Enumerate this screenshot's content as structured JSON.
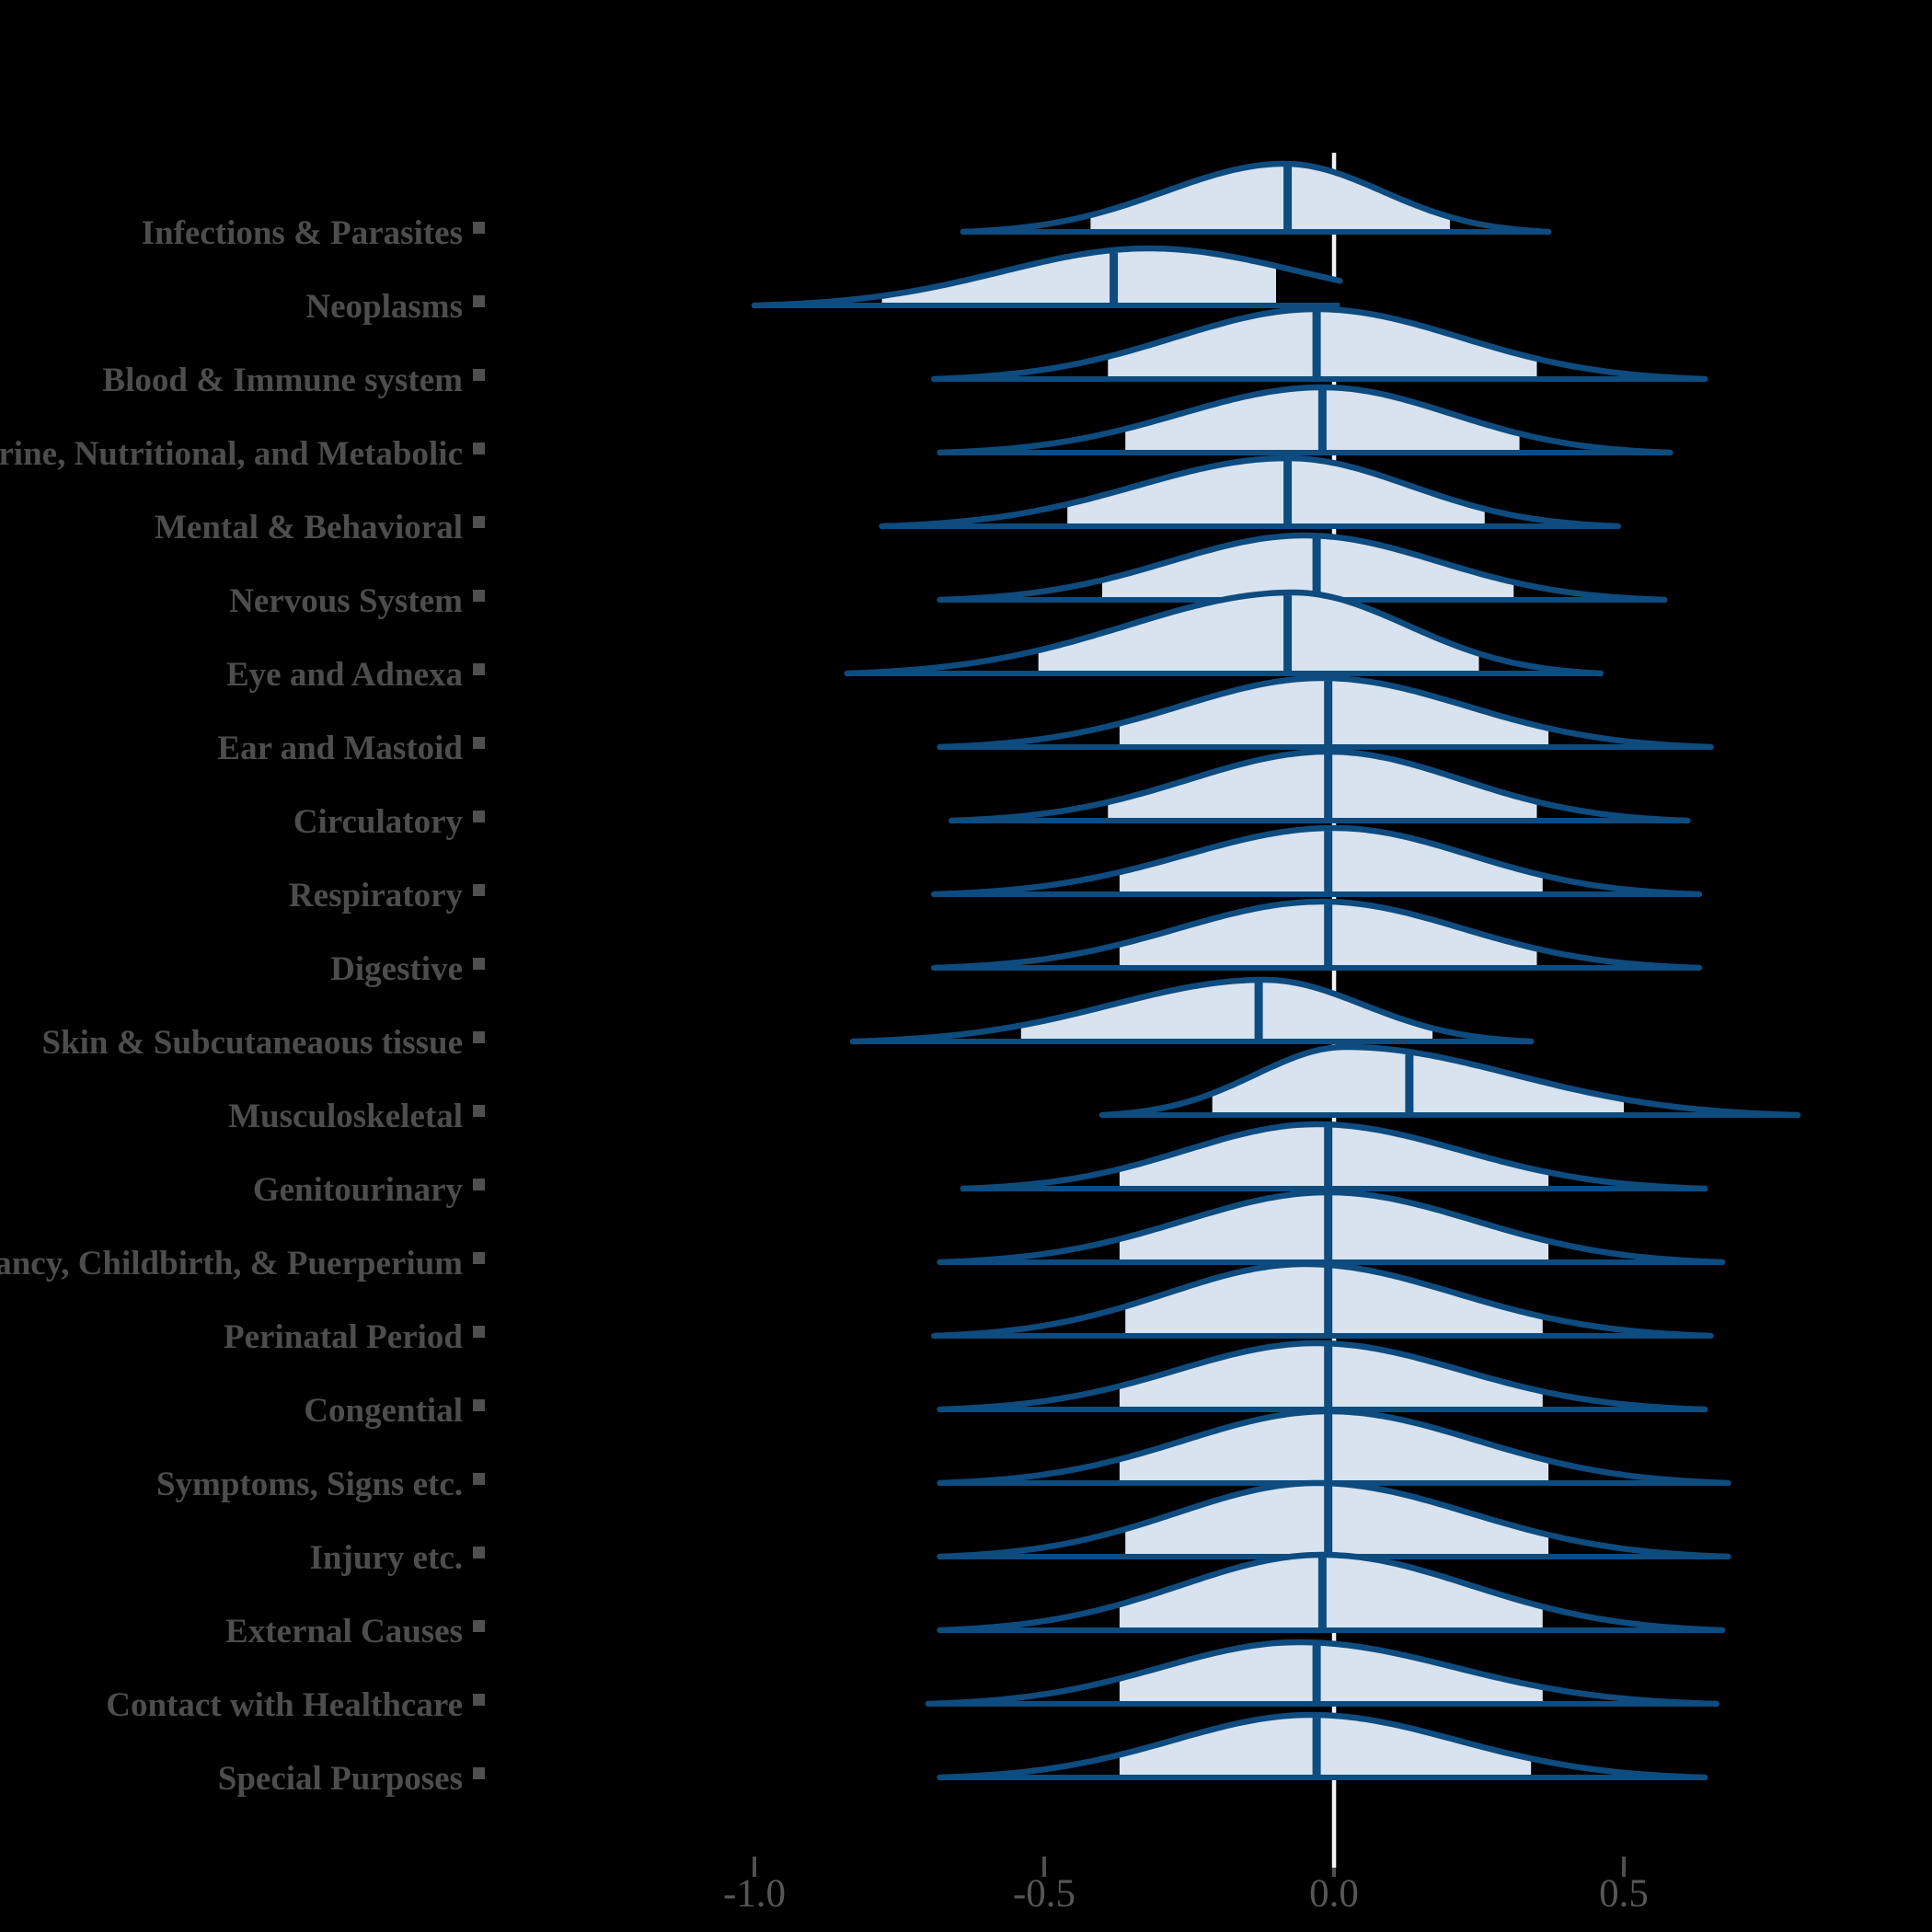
{
  "chart_data": {
    "type": "ridgeline",
    "title": "",
    "xlabel": "",
    "ylabel": "",
    "x_axis": {
      "tick_values": [
        -1.0,
        -0.5,
        0.0,
        0.5
      ],
      "tick_labels": [
        "-1.0",
        "-0.5",
        "0.0",
        "0.5"
      ],
      "range": [
        -1.1,
        0.9
      ],
      "reference_line": 0.0
    },
    "legend": null,
    "grid": false,
    "style_note": "density ridges with quantile band fill, median line, and white reference line at 0",
    "rows": [
      {
        "label": "Infections & Parasites",
        "min": -0.64,
        "q_low": -0.42,
        "median": -0.08,
        "q_high": 0.2,
        "max": 0.37,
        "mode": -0.085,
        "amplitude": 74
      },
      {
        "label": "Neoplasms",
        "min": -1.0,
        "q_low": -0.78,
        "median": -0.38,
        "q_high": -0.1,
        "max": 0.01,
        "mode": -0.32,
        "amplitude": 62,
        "trim_right": true,
        "sr": 0.26
      },
      {
        "label": "Blood & Immune system",
        "min": -0.69,
        "q_low": -0.39,
        "median": -0.03,
        "q_high": 0.35,
        "max": 0.64,
        "mode": -0.03,
        "amplitude": 76
      },
      {
        "label": "Endocrine, Nutritional, and Metabolic",
        "min": -0.68,
        "q_low": -0.36,
        "median": -0.02,
        "q_high": 0.32,
        "max": 0.58,
        "mode": -0.02,
        "amplitude": 71
      },
      {
        "label": "Mental & Behavioral",
        "min": -0.78,
        "q_low": -0.46,
        "median": -0.08,
        "q_high": 0.26,
        "max": 0.49,
        "mode": -0.08,
        "amplitude": 74
      },
      {
        "label": "Nervous System",
        "min": -0.68,
        "q_low": -0.4,
        "median": -0.03,
        "q_high": 0.31,
        "max": 0.57,
        "mode": -0.05,
        "amplitude": 70
      },
      {
        "label": "Eye and Adnexa",
        "min": -0.84,
        "q_low": -0.51,
        "median": -0.08,
        "q_high": 0.25,
        "max": 0.46,
        "mode": -0.07,
        "amplitude": 88
      },
      {
        "label": "Ear and Mastoid",
        "min": -0.68,
        "q_low": -0.37,
        "median": -0.01,
        "q_high": 0.37,
        "max": 0.65,
        "mode": -0.02,
        "amplitude": 75
      },
      {
        "label": "Circulatory",
        "min": -0.66,
        "q_low": -0.39,
        "median": -0.01,
        "q_high": 0.35,
        "max": 0.61,
        "mode": -0.01,
        "amplitude": 75
      },
      {
        "label": "Respiratory",
        "min": -0.69,
        "q_low": -0.37,
        "median": -0.01,
        "q_high": 0.36,
        "max": 0.63,
        "mode": 0.0,
        "amplitude": 72
      },
      {
        "label": "Digestive",
        "min": -0.69,
        "q_low": -0.37,
        "median": -0.01,
        "q_high": 0.35,
        "max": 0.63,
        "mode": -0.02,
        "amplitude": 72
      },
      {
        "label": "Skin & Subcutaneaous tissue",
        "min": -0.83,
        "q_low": -0.54,
        "median": -0.13,
        "q_high": 0.17,
        "max": 0.34,
        "mode": -0.12,
        "amplitude": 67
      },
      {
        "label": "Musculoskeletal",
        "min": -0.4,
        "q_low": -0.21,
        "median": 0.13,
        "q_high": 0.5,
        "max": 0.8,
        "mode": 0.02,
        "amplitude": 74
      },
      {
        "label": "Genitourinary",
        "min": -0.64,
        "q_low": -0.37,
        "median": -0.01,
        "q_high": 0.37,
        "max": 0.64,
        "mode": -0.03,
        "amplitude": 70
      },
      {
        "label": "Pregancy, Childbirth, & Puerperium",
        "min": -0.68,
        "q_low": -0.37,
        "median": -0.01,
        "q_high": 0.37,
        "max": 0.67,
        "mode": -0.01,
        "amplitude": 76
      },
      {
        "label": "Perinatal Period",
        "min": -0.69,
        "q_low": -0.36,
        "median": -0.01,
        "q_high": 0.36,
        "max": 0.65,
        "mode": -0.05,
        "amplitude": 78
      },
      {
        "label": "Congential",
        "min": -0.68,
        "q_low": -0.37,
        "median": -0.01,
        "q_high": 0.36,
        "max": 0.64,
        "mode": -0.03,
        "amplitude": 72
      },
      {
        "label": "Symptoms, Signs etc.",
        "min": -0.68,
        "q_low": -0.37,
        "median": -0.01,
        "q_high": 0.37,
        "max": 0.68,
        "mode": -0.01,
        "amplitude": 78
      },
      {
        "label": "Injury etc.",
        "min": -0.68,
        "q_low": -0.36,
        "median": -0.01,
        "q_high": 0.37,
        "max": 0.68,
        "mode": -0.03,
        "amplitude": 80
      },
      {
        "label": "External Causes",
        "min": -0.68,
        "q_low": -0.37,
        "median": -0.02,
        "q_high": 0.36,
        "max": 0.67,
        "mode": -0.02,
        "amplitude": 82
      },
      {
        "label": "Contact with Healthcare",
        "min": -0.7,
        "q_low": -0.37,
        "median": -0.03,
        "q_high": 0.36,
        "max": 0.66,
        "mode": -0.06,
        "amplitude": 67
      },
      {
        "label": "Special Purposes",
        "min": -0.68,
        "q_low": -0.37,
        "median": -0.03,
        "q_high": 0.34,
        "max": 0.64,
        "mode": -0.04,
        "amplitude": 68
      }
    ],
    "colors": {
      "background": "#000000",
      "curve": "#0e4b7e",
      "band_fill": "#d8e3ef",
      "median_line": "#0e4b7e",
      "reference_line": "#f4f4f4",
      "row_label": "#4d4d4d",
      "axis_text": "#565656",
      "axis_tick": "#4f4f4f"
    }
  }
}
